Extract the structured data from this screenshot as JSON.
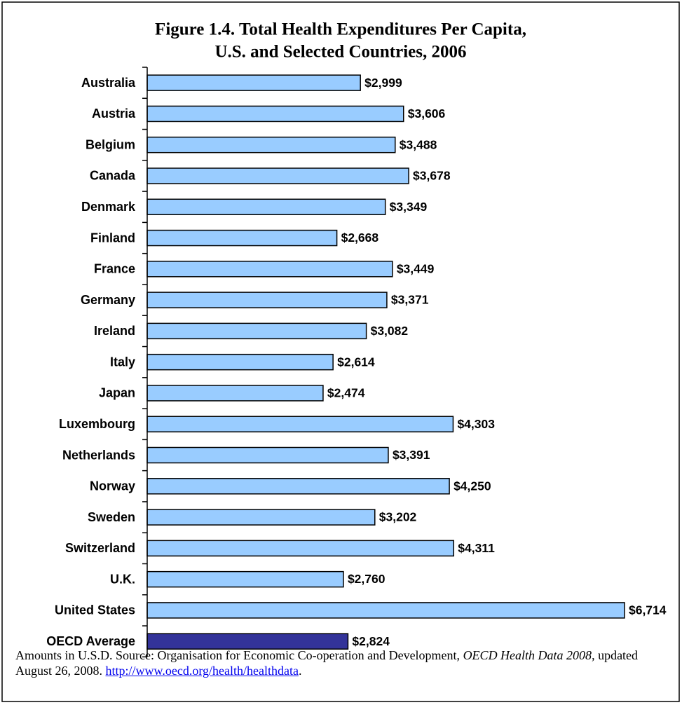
{
  "chart_data": {
    "type": "barh",
    "title_lines": [
      "Figure 1.4. Total Health Expenditures Per Capita,",
      "U.S. and Selected Countries, 2006"
    ],
    "categories": [
      "Australia",
      "Austria",
      "Belgium",
      "Canada",
      "Denmark",
      "Finland",
      "France",
      "Germany",
      "Ireland",
      "Italy",
      "Japan",
      "Luxembourg",
      "Netherlands",
      "Norway",
      "Sweden",
      "Switzerland",
      "U.K.",
      "United States",
      "OECD Average"
    ],
    "values": [
      2999,
      3606,
      3488,
      3678,
      3349,
      2668,
      3449,
      3371,
      3082,
      2614,
      2474,
      4303,
      3391,
      4250,
      3202,
      4311,
      2760,
      6714,
      2824
    ],
    "value_labels": [
      "$2,999",
      "$3,606",
      "$3,488",
      "$3,678",
      "$3,349",
      "$2,668",
      "$3,449",
      "$3,371",
      "$3,082",
      "$2,614",
      "$2,474",
      "$4,303",
      "$3,391",
      "$4,250",
      "$3,202",
      "$4,311",
      "$2,760",
      "$6,714",
      "$2,824"
    ],
    "colors": [
      "#99ccff",
      "#99ccff",
      "#99ccff",
      "#99ccff",
      "#99ccff",
      "#99ccff",
      "#99ccff",
      "#99ccff",
      "#99ccff",
      "#99ccff",
      "#99ccff",
      "#99ccff",
      "#99ccff",
      "#99ccff",
      "#99ccff",
      "#99ccff",
      "#99ccff",
      "#99ccff",
      "#333399"
    ],
    "xlim": [
      0,
      7000
    ],
    "footnote": {
      "text1": "Amounts in U.S.D.  Source: Organisation for Economic Co-operation and Development, ",
      "italic": "OECD Health Data 2008",
      "text2": ", updated August 26, 2008.  ",
      "link": "http://www.oecd.org/health/healthdata",
      "text3": "."
    }
  }
}
